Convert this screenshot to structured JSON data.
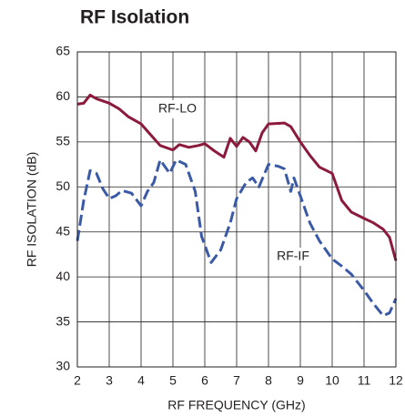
{
  "chart_data": {
    "type": "line",
    "title": "RF Isolation",
    "x_label": "RF FREQUENCY (GHz)",
    "y_label": "RF ISOLATION (dB)",
    "xlim": [
      2,
      12
    ],
    "xticks": [
      2,
      3,
      4,
      5,
      6,
      7,
      8,
      9,
      10,
      11,
      12
    ],
    "ylim": [
      30,
      65
    ],
    "yticks": [
      30,
      35,
      40,
      45,
      50,
      55,
      60,
      65
    ],
    "grid": true,
    "series": [
      {
        "name": "RF-LO",
        "color": "#8b1a3c",
        "dash": false,
        "x": [
          2,
          2.2,
          2.4,
          2.6,
          3,
          3.3,
          3.6,
          4,
          4.3,
          4.6,
          5,
          5.2,
          5.5,
          5.8,
          6,
          6.3,
          6.6,
          6.8,
          7,
          7.2,
          7.4,
          7.6,
          7.8,
          8,
          8.5,
          8.7,
          9,
          9.3,
          9.6,
          10,
          10.3,
          10.6,
          11,
          11.3,
          11.6,
          11.8,
          12
        ],
        "values": [
          59.2,
          59.3,
          60.2,
          59.8,
          59.3,
          58.7,
          57.8,
          57,
          55.8,
          54.6,
          54.1,
          54.7,
          54.4,
          54.6,
          54.8,
          54,
          53.3,
          55.4,
          54.5,
          55.5,
          55,
          54,
          56,
          57,
          57.1,
          56.7,
          55,
          53.5,
          52.2,
          51.5,
          48.5,
          47.2,
          46.5,
          46,
          45.3,
          44.4,
          41.8
        ]
      },
      {
        "name": "RF-IF",
        "color": "#3b5aa6",
        "dash": true,
        "x": [
          2,
          2.2,
          2.4,
          2.6,
          2.8,
          3,
          3.2,
          3.4,
          3.7,
          4,
          4.2,
          4.4,
          4.6,
          4.9,
          5.1,
          5.4,
          5.7,
          5.9,
          6.2,
          6.5,
          6.8,
          7,
          7.3,
          7.5,
          7.7,
          8,
          8.3,
          8.5,
          8.7,
          8.8,
          9,
          9.3,
          9.6,
          10,
          10.3,
          10.6,
          11,
          11.3,
          11.6,
          11.8,
          12
        ],
        "values": [
          44,
          48.5,
          51.8,
          51.5,
          49.8,
          48.7,
          49,
          49.6,
          49.3,
          47.9,
          49.5,
          50.5,
          53,
          51.5,
          53,
          52.5,
          49.5,
          44.5,
          41.6,
          43,
          46,
          48.7,
          50.5,
          51,
          50,
          52.5,
          52.3,
          52,
          49.5,
          51,
          49,
          46,
          44,
          42,
          41.2,
          40.3,
          38.5,
          37,
          35.7,
          36,
          37.6
        ]
      }
    ]
  }
}
